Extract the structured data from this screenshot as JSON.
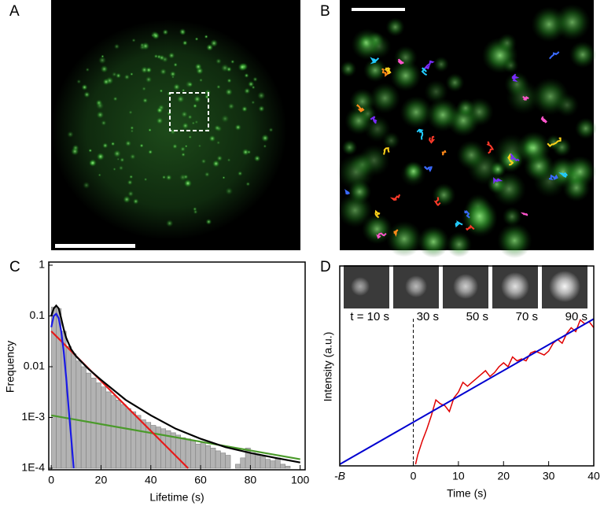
{
  "panel_labels": [
    "A",
    "B",
    "C",
    "D"
  ],
  "chart_data": [
    {
      "type": "histogram",
      "yscale": "log",
      "xlabel": "Lifetime (s)",
      "ylabel": "Frequency",
      "bins": [
        0,
        2,
        4,
        6,
        8,
        10,
        12,
        14,
        16,
        18,
        20,
        22,
        24,
        26,
        28,
        30,
        32,
        34,
        36,
        38,
        40,
        42,
        44,
        46,
        48,
        50,
        52,
        54,
        56,
        58,
        60,
        62,
        64,
        66,
        68,
        70,
        72,
        74,
        76,
        78,
        80,
        82,
        84,
        86,
        88,
        90,
        92,
        94,
        96,
        98,
        100
      ],
      "values": [
        0.15,
        0.14,
        0.05,
        0.025,
        0.018,
        0.013,
        0.01,
        0.0075,
        0.006,
        0.0048,
        0.004,
        0.0032,
        0.0027,
        0.0022,
        0.0018,
        0.0015,
        0.0013,
        0.0011,
        0.0009,
        0.0008,
        0.0007,
        0.00065,
        0.0006,
        0.00055,
        0.0005,
        0.00045,
        0.0004,
        0.00038,
        0.00035,
        0.0003,
        0.00032,
        0.00028,
        0.00025,
        0.00022,
        0.0002,
        0.00018,
        0.0001,
        0.00012,
        0.00016,
        0.00025,
        0.0002,
        0.00018,
        0.00017,
        0.00015,
        0.00014,
        0.00016,
        0.00012,
        0.00011,
        0.0001,
        0.0001
      ],
      "color": "#b3b3b3",
      "curves": [
        {
          "color": "#000000",
          "x": [
            0,
            1,
            2,
            3,
            4,
            5,
            6,
            8,
            10,
            15,
            20,
            30,
            40,
            50,
            60,
            70,
            80,
            90,
            100
          ],
          "values": [
            0.1,
            0.14,
            0.16,
            0.14,
            0.09,
            0.055,
            0.037,
            0.022,
            0.016,
            0.009,
            0.0055,
            0.0022,
            0.0011,
            0.0006,
            0.00038,
            0.00026,
            0.0002,
            0.00016,
            0.00013
          ]
        },
        {
          "color": "#1a1ae6",
          "x": [
            0,
            1,
            2,
            3,
            4,
            5,
            6,
            7,
            8,
            9
          ],
          "values": [
            0.06,
            0.1,
            0.11,
            0.09,
            0.05,
            0.02,
            0.006,
            0.0015,
            0.0004,
            0.0001
          ]
        },
        {
          "color": "#e61a1a",
          "x": [
            0,
            55
          ],
          "values": [
            0.05,
            0.0001
          ]
        },
        {
          "color": "#4a9a2a",
          "x": [
            0,
            100
          ],
          "values": [
            0.0011,
            0.00015
          ]
        }
      ],
      "xlim": [
        -1,
        102
      ],
      "ylim": [
        0.0001,
        1
      ],
      "xticks": [
        0,
        20,
        40,
        60,
        80,
        100
      ],
      "yticks": [
        {
          "value": 0.0001,
          "label": "1E-4"
        },
        {
          "value": 0.001,
          "label": "1E-3"
        },
        0.01,
        0.1,
        1
      ]
    },
    {
      "type": "line",
      "xlabel": "Time (s)",
      "ylabel": "Intensity (a.u.)",
      "thumbnail_labels": [
        "t = 10 s",
        "30 s",
        "50 s",
        "70 s",
        "90 s"
      ],
      "series": [
        {
          "color": "#e00000",
          "x": [
            0.5,
            1,
            2,
            3,
            4,
            5,
            6,
            7,
            8,
            9,
            10,
            11,
            12,
            13,
            14,
            15,
            16,
            17,
            18,
            19,
            20,
            21,
            22,
            23,
            24,
            25,
            26,
            27,
            28,
            29,
            30,
            31,
            32,
            33,
            34,
            35,
            36,
            37,
            38,
            39,
            40
          ],
          "values": [
            0,
            0.05,
            0.12,
            0.18,
            0.25,
            0.33,
            0.31,
            0.3,
            0.27,
            0.34,
            0.37,
            0.42,
            0.4,
            0.42,
            0.44,
            0.46,
            0.48,
            0.45,
            0.47,
            0.5,
            0.52,
            0.5,
            0.55,
            0.53,
            0.54,
            0.53,
            0.57,
            0.58,
            0.57,
            0.56,
            0.58,
            0.62,
            0.64,
            0.62,
            0.67,
            0.7,
            0.68,
            0.74,
            0.72,
            0.73,
            0.7
          ]
        },
        {
          "color": "#0000d0",
          "x": [
            -16.3,
            40
          ],
          "values": [
            0,
            0.745
          ]
        }
      ],
      "xlim": [
        -16.3,
        40
      ],
      "ylim": [
        0,
        1
      ],
      "xticks": [
        {
          "value": -16.3,
          "label": "-B"
        },
        0,
        10,
        20,
        30,
        40
      ]
    }
  ]
}
